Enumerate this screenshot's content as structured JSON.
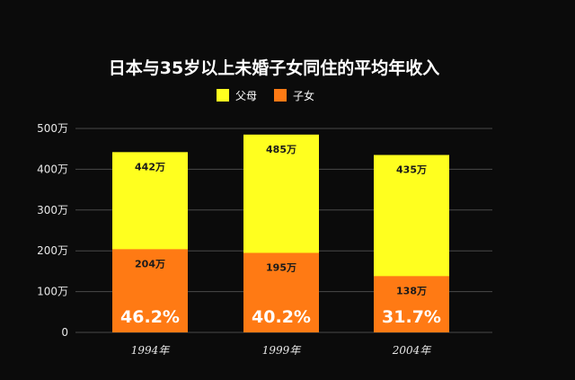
{
  "chart_data": {
    "type": "bar",
    "stacked": false,
    "title": "日本与35岁以上未婚子女同住的平均年收入",
    "categories": [
      "1994年",
      "1999年",
      "2004年"
    ],
    "series": [
      {
        "name": "父母",
        "values": [
          442,
          485,
          435
        ],
        "labels": [
          "442万",
          "485万",
          "435万"
        ],
        "color": "#ffff1f"
      },
      {
        "name": "子女",
        "values": [
          204,
          195,
          138
        ],
        "labels": [
          "204万",
          "195万",
          "138万"
        ],
        "color": "#ff7a14"
      }
    ],
    "ratios": [
      "46.2%",
      "40.2%",
      "31.7%"
    ],
    "yticks": [
      0,
      100,
      200,
      300,
      400,
      500
    ],
    "ytick_labels": [
      "0",
      "100万",
      "200万",
      "300万",
      "400万",
      "500万"
    ],
    "ylim": [
      0,
      500
    ],
    "grid": true,
    "legend_position": "top-center"
  }
}
